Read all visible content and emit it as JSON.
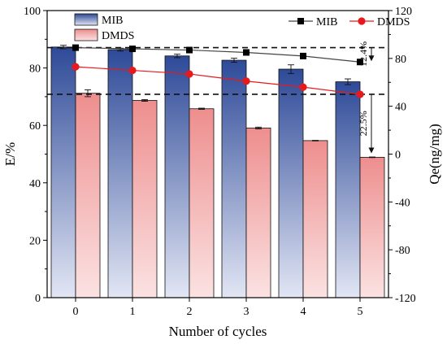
{
  "chart_data": {
    "type": "bar",
    "categories": [
      "0",
      "1",
      "2",
      "3",
      "4",
      "5"
    ],
    "xlabel": "Number of cycles",
    "ylabel_left": "E/%",
    "ylabel_right": "Qe(ng/mg)",
    "ylim_left": [
      0,
      100
    ],
    "ylim_right": [
      -120,
      120
    ],
    "yticks_left": [
      "0",
      "20",
      "40",
      "60",
      "80",
      "100"
    ],
    "yticks_right": [
      "-120",
      "-80",
      "-40",
      "0",
      "40",
      "80",
      "120"
    ],
    "bar_series": [
      {
        "name": "MIB",
        "values": [
          87.3,
          86.4,
          84.2,
          82.7,
          79.6,
          75.2
        ],
        "errors": [
          0.6,
          0.5,
          0.6,
          0.7,
          1.5,
          1.0
        ],
        "top_color": "#2e4a98",
        "bottom_color": "#e2e6f4"
      },
      {
        "name": "DMDS",
        "values": [
          71.2,
          68.7,
          65.8,
          59.1,
          54.7,
          48.9
        ],
        "errors": [
          1.2,
          0.3,
          0.2,
          0.3,
          0.1,
          0.1
        ],
        "top_color": "#ee8e8e",
        "bottom_color": "#fbe2e2"
      }
    ],
    "line_series": [
      {
        "name": "MIB",
        "axis": "right",
        "values": [
          89,
          88,
          87,
          85,
          82,
          77
        ],
        "color": "#000000",
        "marker": "square"
      },
      {
        "name": "DMDS",
        "axis": "right",
        "values": [
          73,
          70,
          67,
          61,
          56,
          50
        ],
        "color": "#e8191c",
        "marker": "circle"
      }
    ],
    "reference_lines": [
      {
        "axis": "right",
        "value": 89,
        "style": "dashed"
      },
      {
        "axis": "right",
        "value": 50,
        "style": "dashed"
      }
    ],
    "annotations": [
      {
        "text": "12.4%",
        "category": "5",
        "from": 89,
        "to": 77,
        "axis": "right"
      },
      {
        "text": "22.5%",
        "category": "5",
        "from": 50,
        "to": 0,
        "axis": "right"
      }
    ],
    "legend_bars": {
      "position": "top-left",
      "entries": [
        "MIB",
        "DMDS"
      ]
    },
    "legend_lines": {
      "position": "top-right",
      "entries": [
        "MIB",
        "DMDS"
      ]
    }
  }
}
